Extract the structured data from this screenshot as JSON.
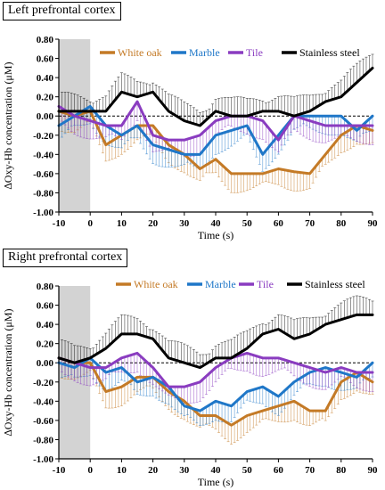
{
  "chart_data": [
    {
      "type": "line",
      "title": "Left prefrontal cortex",
      "xlabel": "Time (s)",
      "ylabel": "∆Oxy-Hb concentration (μM)",
      "xlim": [
        -10,
        90
      ],
      "ylim": [
        -1.0,
        0.8
      ],
      "xticks": [
        "-10",
        "0",
        "10",
        "20",
        "30",
        "40",
        "50",
        "60",
        "70",
        "80",
        "90"
      ],
      "yticks": [
        "0.80",
        "0.60",
        "0.40",
        "0.20",
        "0.00",
        "-0.20",
        "-0.40",
        "-0.60",
        "-0.80",
        "-1.00"
      ],
      "shaded_interval": [
        -10,
        0
      ],
      "legend_position": "top",
      "series": [
        {
          "name": "White oak",
          "color": "#c47a26",
          "x": [
            -10,
            -7,
            -5,
            0,
            5,
            10,
            15,
            20,
            25,
            30,
            35,
            40,
            45,
            50,
            55,
            60,
            65,
            70,
            75,
            80,
            85,
            90
          ],
          "values": [
            0.05,
            0.02,
            0.0,
            0.05,
            -0.3,
            -0.2,
            -0.1,
            -0.1,
            -0.3,
            -0.4,
            -0.55,
            -0.45,
            -0.6,
            -0.6,
            -0.6,
            -0.55,
            -0.58,
            -0.6,
            -0.4,
            -0.2,
            -0.1,
            -0.15
          ]
        },
        {
          "name": "Marble",
          "color": "#1f77c8",
          "x": [
            -10,
            -5,
            0,
            5,
            10,
            15,
            20,
            25,
            30,
            35,
            40,
            45,
            50,
            55,
            60,
            65,
            70,
            75,
            80,
            85,
            90
          ],
          "values": [
            -0.1,
            0.0,
            0.1,
            -0.1,
            -0.2,
            -0.1,
            -0.3,
            -0.35,
            -0.4,
            -0.4,
            -0.2,
            -0.15,
            -0.1,
            -0.4,
            -0.2,
            0.0,
            0.0,
            0.0,
            0.0,
            -0.15,
            0.0
          ]
        },
        {
          "name": "Tile",
          "color": "#8a3cc0",
          "x": [
            -10,
            -5,
            0,
            5,
            10,
            15,
            20,
            25,
            30,
            35,
            40,
            45,
            50,
            55,
            60,
            65,
            70,
            75,
            80,
            85,
            90
          ],
          "values": [
            0.1,
            0.0,
            -0.05,
            -0.1,
            -0.1,
            0.15,
            -0.2,
            -0.25,
            -0.25,
            -0.2,
            -0.05,
            0.0,
            0.0,
            -0.05,
            -0.25,
            0.0,
            -0.05,
            -0.1,
            -0.1,
            -0.1,
            -0.1
          ]
        },
        {
          "name": "Stainless steel",
          "color": "#000000",
          "x": [
            -10,
            -5,
            0,
            5,
            10,
            15,
            20,
            25,
            30,
            35,
            40,
            45,
            50,
            55,
            60,
            65,
            70,
            75,
            80,
            85,
            90
          ],
          "values": [
            0.05,
            0.05,
            0.05,
            0.05,
            0.25,
            0.2,
            0.25,
            0.05,
            -0.05,
            -0.1,
            0.05,
            0.0,
            0.0,
            0.05,
            0.05,
            0.0,
            0.05,
            0.15,
            0.2,
            0.35,
            0.5
          ]
        }
      ]
    },
    {
      "type": "line",
      "title": "Right prefrontal cortex",
      "xlabel": "Time (s)",
      "ylabel": "∆Oxy-Hb concentration (μM)",
      "xlim": [
        -10,
        90
      ],
      "ylim": [
        -1.0,
        0.8
      ],
      "xticks": [
        "-10",
        "0",
        "10",
        "20",
        "30",
        "40",
        "50",
        "60",
        "70",
        "80",
        "90"
      ],
      "yticks": [
        "0.80",
        "0.60",
        "0.40",
        "0.20",
        "0.00",
        "-0.20",
        "-0.40",
        "-0.60",
        "-0.80",
        "-1.00"
      ],
      "shaded_interval": [
        -10,
        0
      ],
      "legend_position": "top",
      "series": [
        {
          "name": "White oak",
          "color": "#c47a26",
          "x": [
            -10,
            -5,
            0,
            5,
            10,
            15,
            20,
            25,
            30,
            35,
            40,
            45,
            50,
            55,
            60,
            65,
            70,
            75,
            80,
            85,
            90
          ],
          "values": [
            0.05,
            0.0,
            0.0,
            -0.3,
            -0.25,
            -0.15,
            -0.15,
            -0.3,
            -0.4,
            -0.55,
            -0.55,
            -0.65,
            -0.55,
            -0.5,
            -0.45,
            -0.4,
            -0.5,
            -0.5,
            -0.2,
            -0.1,
            -0.2
          ]
        },
        {
          "name": "Marble",
          "color": "#1f77c8",
          "x": [
            -10,
            -5,
            0,
            5,
            10,
            15,
            20,
            25,
            30,
            35,
            40,
            45,
            50,
            55,
            60,
            65,
            70,
            75,
            80,
            85,
            90
          ],
          "values": [
            0.0,
            -0.05,
            0.05,
            -0.1,
            -0.05,
            -0.2,
            -0.15,
            -0.25,
            -0.45,
            -0.5,
            -0.4,
            -0.45,
            -0.3,
            -0.25,
            -0.35,
            -0.2,
            -0.1,
            -0.05,
            -0.1,
            -0.15,
            0.0
          ]
        },
        {
          "name": "Tile",
          "color": "#8a3cc0",
          "x": [
            -10,
            -5,
            0,
            5,
            10,
            15,
            20,
            25,
            30,
            35,
            40,
            45,
            50,
            55,
            60,
            65,
            70,
            75,
            80,
            85,
            90
          ],
          "values": [
            0.05,
            0.0,
            -0.05,
            -0.05,
            0.05,
            0.1,
            -0.05,
            -0.25,
            -0.25,
            -0.2,
            -0.05,
            0.05,
            0.1,
            0.05,
            0.05,
            0.0,
            -0.05,
            -0.1,
            -0.05,
            -0.1,
            -0.1
          ]
        },
        {
          "name": "Stainless steel",
          "color": "#000000",
          "x": [
            -10,
            -5,
            0,
            5,
            10,
            15,
            20,
            25,
            30,
            35,
            40,
            45,
            50,
            55,
            60,
            65,
            70,
            75,
            80,
            85,
            90
          ],
          "values": [
            0.05,
            0.0,
            0.05,
            0.15,
            0.3,
            0.3,
            0.25,
            0.05,
            0.0,
            -0.05,
            0.05,
            0.05,
            0.15,
            0.3,
            0.35,
            0.25,
            0.3,
            0.4,
            0.45,
            0.5,
            0.5
          ]
        }
      ]
    }
  ]
}
